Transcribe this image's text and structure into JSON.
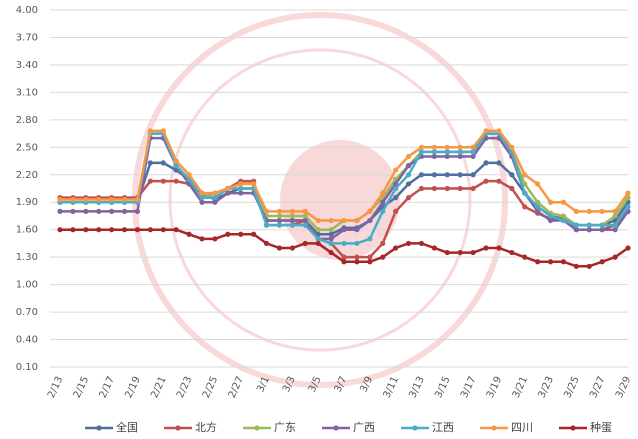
{
  "chart_data": {
    "type": "line",
    "categories": [
      "2/13",
      null,
      "2/15",
      null,
      "2/17",
      null,
      "2/19",
      null,
      "2/21",
      null,
      "2/23",
      null,
      "2/25",
      null,
      "2/27",
      null,
      "3/1",
      null,
      "3/3",
      null,
      "3/5",
      null,
      "3/7",
      null,
      "3/9",
      null,
      "3/11",
      null,
      "3/13",
      null,
      "3/15",
      null,
      "3/17",
      null,
      "3/19",
      null,
      "3/21",
      null,
      "3/23",
      null,
      "3/25",
      null,
      "3/27",
      null,
      "3/29"
    ],
    "ylim": [
      0.1,
      4.0
    ],
    "yticks": [
      {
        "value": 0.1,
        "label": "0.10"
      },
      {
        "value": 0.4,
        "label": "0.40"
      },
      {
        "value": 0.7,
        "label": "0.70"
      },
      {
        "value": 1.0,
        "label": "1.00"
      },
      {
        "value": 1.3,
        "label": "1.30"
      },
      {
        "value": 1.6,
        "label": "1.60"
      },
      {
        "value": 1.9,
        "label": "1.90"
      },
      {
        "value": 2.2,
        "label": "2.20"
      },
      {
        "value": 2.5,
        "label": "2.50"
      },
      {
        "value": 2.8,
        "label": "2.80"
      },
      {
        "value": 3.1,
        "label": "3.10"
      },
      {
        "value": 3.4,
        "label": "3.40"
      },
      {
        "value": 3.7,
        "label": "3.70"
      },
      {
        "value": 4.0,
        "label": "4.00"
      }
    ],
    "grid": true,
    "series": [
      {
        "name": "全国",
        "color": "#4f6f9f",
        "values": [
          1.9,
          1.9,
          1.9,
          1.9,
          1.9,
          1.9,
          1.9,
          2.33,
          2.33,
          2.25,
          2.15,
          2.0,
          1.93,
          2.0,
          2.05,
          2.05,
          1.7,
          1.7,
          1.7,
          1.7,
          1.55,
          1.55,
          1.62,
          1.62,
          1.7,
          1.85,
          1.95,
          2.1,
          2.2,
          2.2,
          2.2,
          2.2,
          2.2,
          2.33,
          2.33,
          2.2,
          2.0,
          1.85,
          1.75,
          1.72,
          1.65,
          1.65,
          1.65,
          1.7,
          1.9
        ]
      },
      {
        "name": "北方",
        "color": "#c0504d",
        "values": [
          1.95,
          1.95,
          1.95,
          1.95,
          1.95,
          1.95,
          1.95,
          2.13,
          2.13,
          2.13,
          2.1,
          1.98,
          2.0,
          2.05,
          2.13,
          2.13,
          1.65,
          1.65,
          1.65,
          1.7,
          1.5,
          1.45,
          1.3,
          1.3,
          1.3,
          1.45,
          1.8,
          1.95,
          2.05,
          2.05,
          2.05,
          2.05,
          2.05,
          2.13,
          2.13,
          2.05,
          1.85,
          1.78,
          1.72,
          1.72,
          1.6,
          1.6,
          1.6,
          1.65,
          1.8
        ]
      },
      {
        "name": "广东",
        "color": "#9bbb59",
        "values": [
          1.9,
          1.9,
          1.9,
          1.9,
          1.9,
          1.9,
          1.9,
          2.65,
          2.65,
          2.35,
          2.2,
          2.0,
          1.95,
          2.05,
          2.1,
          2.1,
          1.75,
          1.75,
          1.75,
          1.75,
          1.6,
          1.6,
          1.7,
          1.7,
          1.8,
          1.95,
          2.15,
          2.3,
          2.45,
          2.45,
          2.45,
          2.45,
          2.45,
          2.65,
          2.65,
          2.45,
          2.1,
          1.9,
          1.78,
          1.75,
          1.65,
          1.65,
          1.65,
          1.75,
          1.95
        ]
      },
      {
        "name": "广西",
        "color": "#8064a2",
        "values": [
          1.8,
          1.8,
          1.8,
          1.8,
          1.8,
          1.8,
          1.8,
          2.6,
          2.6,
          2.3,
          2.1,
          1.9,
          1.9,
          2.0,
          2.0,
          2.0,
          1.7,
          1.7,
          1.7,
          1.7,
          1.5,
          1.5,
          1.6,
          1.6,
          1.7,
          1.9,
          2.1,
          2.3,
          2.4,
          2.4,
          2.4,
          2.4,
          2.4,
          2.6,
          2.6,
          2.4,
          2.0,
          1.8,
          1.7,
          1.7,
          1.6,
          1.6,
          1.6,
          1.6,
          1.8
        ]
      },
      {
        "name": "江西",
        "color": "#4bacc6",
        "values": [
          1.9,
          1.9,
          1.9,
          1.9,
          1.9,
          1.9,
          1.9,
          2.65,
          2.65,
          2.3,
          2.15,
          1.95,
          1.95,
          2.05,
          2.05,
          2.05,
          1.65,
          1.65,
          1.65,
          1.65,
          1.5,
          1.45,
          1.45,
          1.45,
          1.5,
          1.8,
          2.05,
          2.2,
          2.45,
          2.45,
          2.45,
          2.45,
          2.45,
          2.65,
          2.65,
          2.45,
          2.0,
          1.85,
          1.75,
          1.7,
          1.65,
          1.65,
          1.65,
          1.65,
          1.85
        ]
      },
      {
        "name": "四川",
        "color": "#f79646",
        "values": [
          1.93,
          1.93,
          1.93,
          1.93,
          1.93,
          1.93,
          1.93,
          2.68,
          2.68,
          2.35,
          2.2,
          2.0,
          2.0,
          2.05,
          2.1,
          2.1,
          1.8,
          1.8,
          1.8,
          1.8,
          1.7,
          1.7,
          1.7,
          1.7,
          1.8,
          2.0,
          2.25,
          2.4,
          2.5,
          2.5,
          2.5,
          2.5,
          2.5,
          2.68,
          2.68,
          2.5,
          2.2,
          2.1,
          1.9,
          1.9,
          1.8,
          1.8,
          1.8,
          1.8,
          2.0
        ]
      },
      {
        "name": "种蛋",
        "color": "#a6262b",
        "values": [
          1.6,
          1.6,
          1.6,
          1.6,
          1.6,
          1.6,
          1.6,
          1.6,
          1.6,
          1.6,
          1.55,
          1.5,
          1.5,
          1.55,
          1.55,
          1.55,
          1.45,
          1.4,
          1.4,
          1.45,
          1.45,
          1.35,
          1.25,
          1.25,
          1.25,
          1.3,
          1.4,
          1.45,
          1.45,
          1.4,
          1.35,
          1.35,
          1.35,
          1.4,
          1.4,
          1.35,
          1.3,
          1.25,
          1.25,
          1.25,
          1.2,
          1.2,
          1.25,
          1.3,
          1.4
        ]
      }
    ]
  }
}
